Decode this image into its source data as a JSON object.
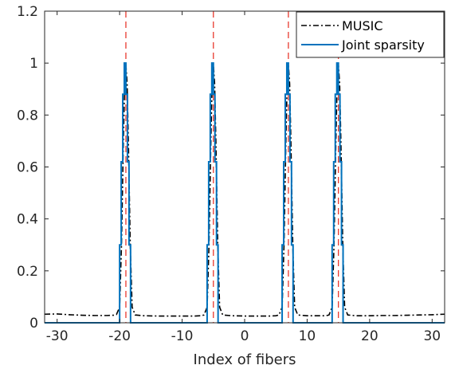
{
  "chart_data": {
    "type": "line",
    "title": "",
    "xlabel": "Index of fibers",
    "ylabel": "",
    "xlim": [
      -32,
      32
    ],
    "ylim": [
      0,
      1.2
    ],
    "grid": false,
    "legend_position": "top-right",
    "x_ticks": [
      -30,
      -20,
      -10,
      0,
      10,
      20,
      30
    ],
    "x_tick_labels": [
      "-30",
      "-20",
      "-10",
      "0",
      "10",
      "20",
      "30"
    ],
    "y_ticks": [
      0,
      0.2,
      0.4,
      0.6,
      0.8,
      1,
      1.2
    ],
    "y_tick_labels": [
      "0",
      "0.2",
      "0.4",
      "0.6",
      "0.8",
      "1",
      "1.2"
    ],
    "reference_lines": {
      "x": [
        -19,
        -5,
        7,
        15
      ],
      "color": "#e8392e",
      "style": "dashed"
    },
    "series": [
      {
        "name": "MUSIC",
        "color": "#000000",
        "style": "dash-dot",
        "x": [
          -32,
          -30,
          -28,
          -26,
          -24,
          -22,
          -21,
          -20.5,
          -20,
          -19.7,
          -19.4,
          -19.2,
          -19,
          -18.8,
          -18.6,
          -18.3,
          -18,
          -17.5,
          -16,
          -14,
          -12,
          -10,
          -8,
          -7,
          -6.5,
          -6,
          -5.7,
          -5.4,
          -5.2,
          -5,
          -4.8,
          -4.6,
          -4.3,
          -4,
          -3.5,
          -2,
          0,
          2,
          4,
          5,
          5.5,
          6,
          6.3,
          6.6,
          6.8,
          7,
          7.2,
          7.4,
          7.7,
          8,
          8.5,
          10,
          12,
          13,
          13.5,
          14,
          14.3,
          14.6,
          14.8,
          15,
          15.2,
          15.4,
          15.7,
          16,
          16.5,
          18,
          20,
          22,
          24,
          26,
          28,
          30,
          32
        ],
        "values": [
          0.033,
          0.034,
          0.031,
          0.029,
          0.028,
          0.028,
          0.029,
          0.032,
          0.06,
          0.3,
          0.7,
          0.92,
          0.995,
          0.92,
          0.7,
          0.3,
          0.06,
          0.03,
          0.027,
          0.026,
          0.026,
          0.026,
          0.026,
          0.027,
          0.03,
          0.06,
          0.3,
          0.7,
          0.92,
          0.995,
          0.92,
          0.7,
          0.3,
          0.06,
          0.03,
          0.027,
          0.026,
          0.026,
          0.026,
          0.027,
          0.03,
          0.06,
          0.3,
          0.7,
          0.92,
          0.995,
          0.92,
          0.7,
          0.3,
          0.06,
          0.03,
          0.027,
          0.027,
          0.027,
          0.03,
          0.06,
          0.3,
          0.7,
          0.92,
          0.995,
          0.92,
          0.7,
          0.3,
          0.06,
          0.03,
          0.027,
          0.027,
          0.028,
          0.028,
          0.029,
          0.03,
          0.031,
          0.033
        ]
      },
      {
        "name": "Joint sparsity",
        "color": "#0072bd",
        "style": "solid",
        "x": [
          -32,
          -20,
          -20,
          -19.75,
          -19.75,
          -19.5,
          -19.5,
          -19.25,
          -19.25,
          -19,
          -19,
          -18.75,
          -18.75,
          -18.5,
          -18.5,
          -18.25,
          -18.25,
          -18,
          -18,
          -6,
          -6,
          -5.75,
          -5.75,
          -5.5,
          -5.5,
          -5.25,
          -5.25,
          -5,
          -5,
          -4.75,
          -4.75,
          -4.5,
          -4.5,
          -4.25,
          -4.25,
          -4,
          -4,
          6,
          6,
          6.25,
          6.25,
          6.5,
          6.5,
          6.75,
          6.75,
          7,
          7,
          7.25,
          7.25,
          7.5,
          7.5,
          7.75,
          7.75,
          8,
          8,
          14,
          14,
          14.25,
          14.25,
          14.5,
          14.5,
          14.75,
          14.75,
          15,
          15,
          15.25,
          15.25,
          15.5,
          15.5,
          15.75,
          15.75,
          16,
          16,
          32
        ],
        "values": [
          0,
          0,
          0.3,
          0.3,
          0.62,
          0.62,
          0.88,
          0.88,
          1,
          1,
          0.88,
          0.88,
          0.62,
          0.62,
          0.3,
          0.3,
          0,
          0,
          0,
          0,
          0.3,
          0.3,
          0.62,
          0.62,
          0.88,
          0.88,
          1,
          1,
          0.88,
          0.88,
          0.62,
          0.62,
          0.3,
          0.3,
          0,
          0,
          0,
          0,
          0.3,
          0.3,
          0.62,
          0.62,
          0.88,
          0.88,
          1,
          1,
          0.88,
          0.88,
          0.62,
          0.62,
          0.3,
          0.3,
          0,
          0,
          0,
          0,
          0.3,
          0.3,
          0.62,
          0.62,
          0.88,
          0.88,
          1,
          1,
          0.88,
          0.88,
          0.62,
          0.62,
          0.3,
          0.3,
          0,
          0,
          0,
          0
        ]
      }
    ]
  }
}
